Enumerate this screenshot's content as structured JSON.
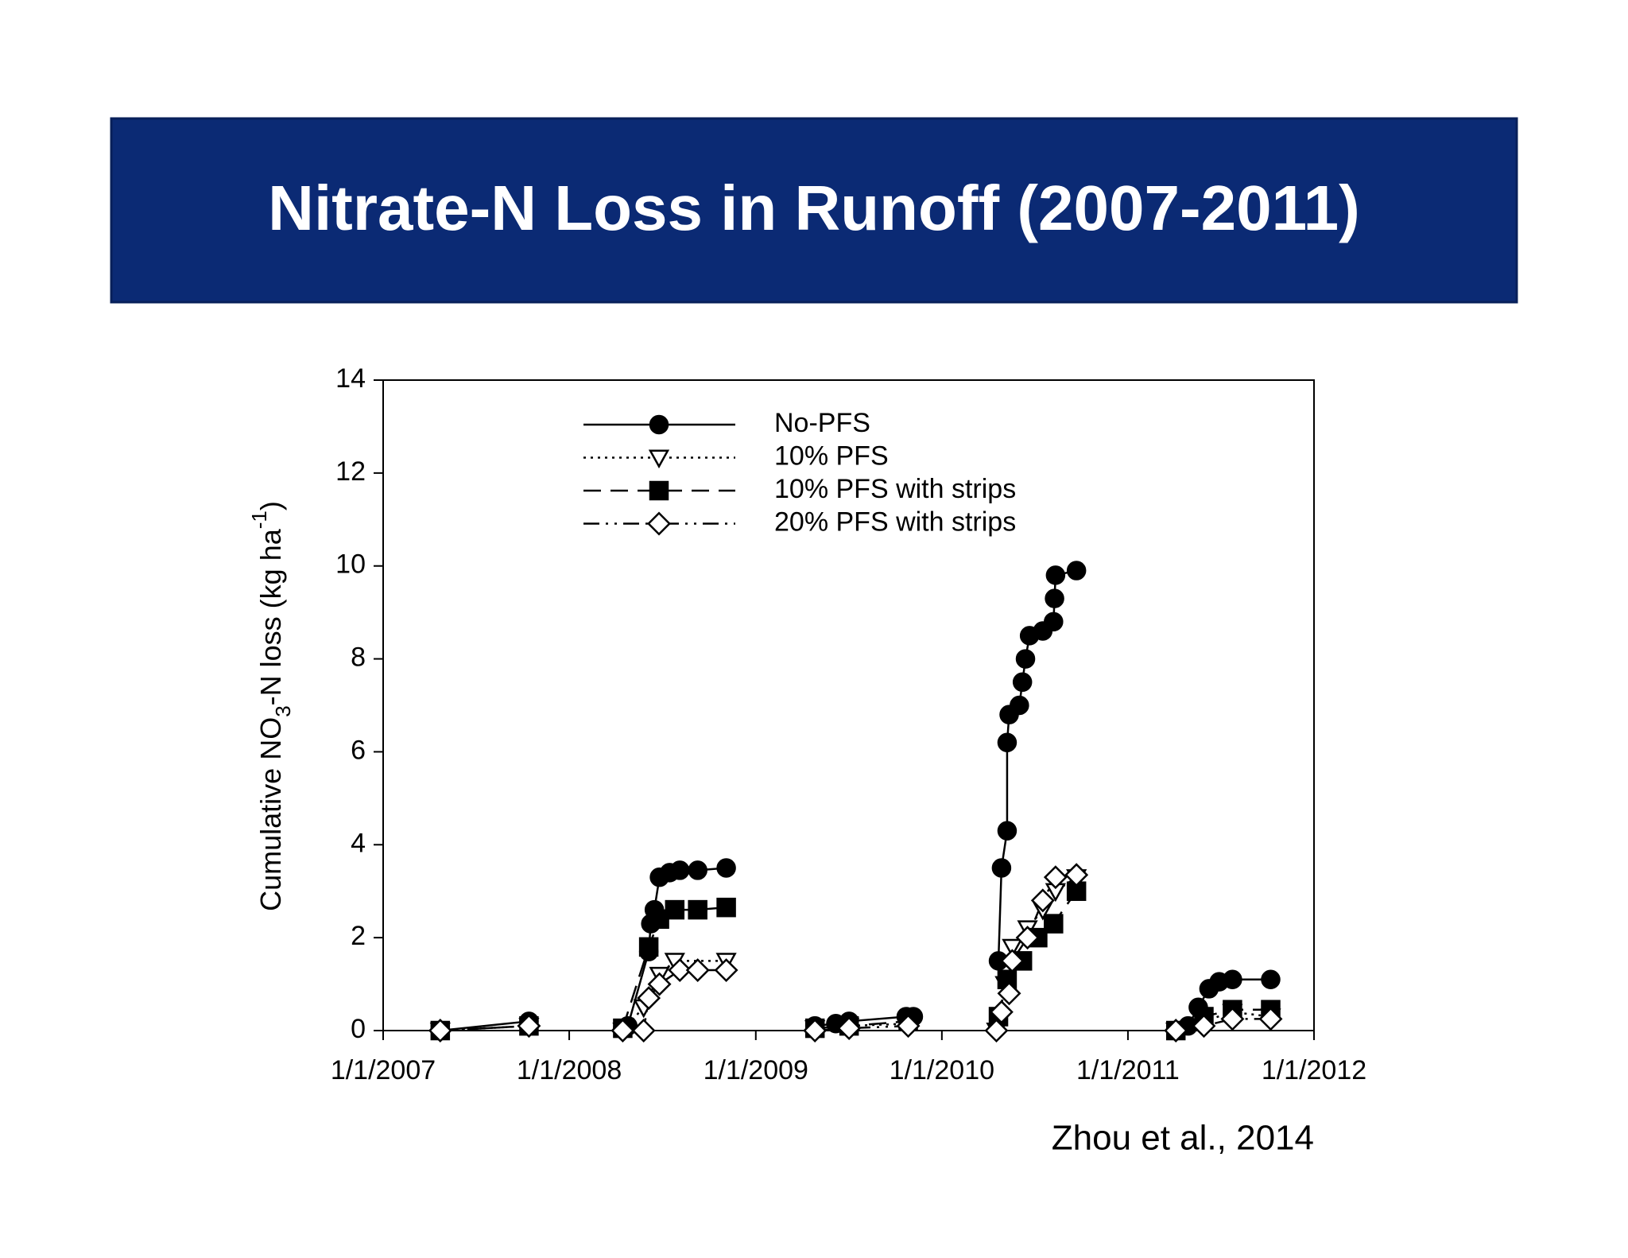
{
  "header": {
    "title": "Nitrate-N Loss in Runoff (2007-2011)"
  },
  "citation": "Zhou et al., 2014",
  "chart_data": {
    "type": "line",
    "ylabel": [
      {
        "text": "Cumulative NO"
      },
      {
        "text": "3",
        "shift": "sub"
      },
      {
        "text": "-N loss (kg ha"
      },
      {
        "text": "-1",
        "shift": "super"
      },
      {
        "text": ")"
      }
    ],
    "xlim": [
      "2007-01-01",
      "2012-01-01"
    ],
    "xticks": [
      {
        "value": "2007-01-01",
        "label": "1/1/2007"
      },
      {
        "value": "2008-01-01",
        "label": "1/1/2008"
      },
      {
        "value": "2009-01-01",
        "label": "1/1/2009"
      },
      {
        "value": "2010-01-01",
        "label": "1/1/2010"
      },
      {
        "value": "2011-01-01",
        "label": "1/1/2011"
      },
      {
        "value": "2012-01-01",
        "label": "1/1/2012"
      }
    ],
    "ylim": [
      0,
      14
    ],
    "yticks": [
      0,
      2,
      4,
      6,
      8,
      10,
      12,
      14
    ],
    "legend": "upper-left",
    "series": [
      {
        "name": "No-PFS",
        "color": "#000000",
        "marker": "circle",
        "filled": true,
        "dash": "solid",
        "x": [
          "2007-04-23",
          "2007-10-14",
          null,
          "2008-04-15",
          "2008-04-25",
          "2008-06-05",
          "2008-06-09",
          "2008-06-16",
          "2008-06-26",
          "2008-07-16",
          "2008-08-05",
          "2008-09-09",
          "2008-11-04",
          null,
          "2009-04-27",
          "2009-06-07",
          "2009-07-03",
          "2009-10-23",
          "2009-11-06",
          null,
          "2010-04-22",
          "2010-04-28",
          "2010-05-09",
          "2010-05-09",
          "2010-05-13",
          "2010-06-02",
          "2010-06-08",
          "2010-06-14",
          "2010-06-22",
          "2010-07-18",
          "2010-08-08",
          "2010-08-10",
          "2010-08-12",
          "2010-09-22",
          null,
          "2011-04-05",
          "2011-04-29",
          "2011-05-19",
          "2011-06-09",
          "2011-06-29",
          "2011-07-25",
          "2011-10-08"
        ],
        "values": [
          0,
          0.2,
          null,
          0.05,
          0.1,
          1.7,
          2.3,
          2.6,
          3.3,
          3.4,
          3.45,
          3.45,
          3.5,
          null,
          0.1,
          0.15,
          0.2,
          0.3,
          0.3,
          null,
          1.5,
          3.5,
          4.3,
          6.2,
          6.8,
          7.0,
          7.5,
          8.0,
          8.5,
          8.6,
          8.8,
          9.3,
          9.8,
          9.9,
          null,
          0,
          0.1,
          0.5,
          0.9,
          1.05,
          1.1,
          1.1
        ]
      },
      {
        "name": "10% PFS",
        "color": "#000000",
        "marker": "triangle",
        "filled": false,
        "dash": "dotted",
        "x": [
          "2007-04-23",
          "2007-10-14",
          null,
          "2008-04-15",
          "2008-05-26",
          "2008-06-26",
          "2008-07-26",
          "2008-11-04",
          null,
          "2009-04-27",
          "2009-07-03",
          "2009-10-27",
          null,
          "2010-04-18",
          "2010-05-05",
          "2010-05-19",
          "2010-06-18",
          "2010-07-18",
          "2010-08-12",
          "2010-09-22",
          null,
          "2011-04-05",
          "2011-05-30",
          "2011-07-25",
          "2011-10-08"
        ],
        "values": [
          0,
          0.1,
          null,
          0,
          0.5,
          1.2,
          1.5,
          1.5,
          null,
          0.05,
          0.1,
          0.15,
          null,
          0,
          1,
          1.8,
          2.2,
          2.6,
          3.0,
          3.3,
          null,
          0,
          0.2,
          0.4,
          0.3
        ]
      },
      {
        "name": "10% PFS with strips",
        "color": "#000000",
        "marker": "square",
        "filled": true,
        "dash": "dashed",
        "x": [
          "2007-04-23",
          "2007-10-14",
          null,
          "2008-04-15",
          "2008-06-05",
          "2008-06-26",
          "2008-07-26",
          "2008-09-09",
          "2008-11-04",
          null,
          "2009-04-27",
          "2009-07-03",
          "2009-10-27",
          null,
          "2010-04-22",
          "2010-05-09",
          "2010-06-08",
          "2010-07-08",
          "2010-08-08",
          "2010-09-22",
          null,
          "2011-04-05",
          "2011-05-30",
          "2011-07-25",
          "2011-10-08"
        ],
        "values": [
          0,
          0.1,
          null,
          0.05,
          1.8,
          2.4,
          2.6,
          2.6,
          2.65,
          null,
          0.05,
          0.1,
          0.2,
          null,
          0.3,
          1.1,
          1.5,
          2.0,
          2.3,
          3.0,
          null,
          0,
          0.3,
          0.45,
          0.45
        ]
      },
      {
        "name": "20% PFS with strips",
        "color": "#000000",
        "marker": "diamond",
        "filled": false,
        "dash": "dashdot",
        "x": [
          "2007-04-23",
          "2007-10-14",
          null,
          "2008-04-15",
          "2008-05-26",
          "2008-06-05",
          "2008-06-26",
          "2008-08-05",
          "2008-09-09",
          "2008-11-04",
          null,
          "2009-04-27",
          "2009-07-03",
          "2009-10-27",
          null,
          "2010-04-18",
          "2010-04-28",
          "2010-05-13",
          "2010-05-19",
          "2010-06-18",
          "2010-07-18",
          "2010-08-12",
          "2010-09-22",
          null,
          "2011-04-05",
          "2011-05-30",
          "2011-07-25",
          "2011-10-08"
        ],
        "values": [
          0,
          0.1,
          null,
          0,
          0,
          0.7,
          1.0,
          1.3,
          1.3,
          1.3,
          null,
          0,
          0.05,
          0.1,
          null,
          0,
          0.4,
          0.8,
          1.5,
          2.0,
          2.8,
          3.3,
          3.35,
          null,
          0,
          0.1,
          0.25,
          0.25
        ]
      }
    ]
  }
}
